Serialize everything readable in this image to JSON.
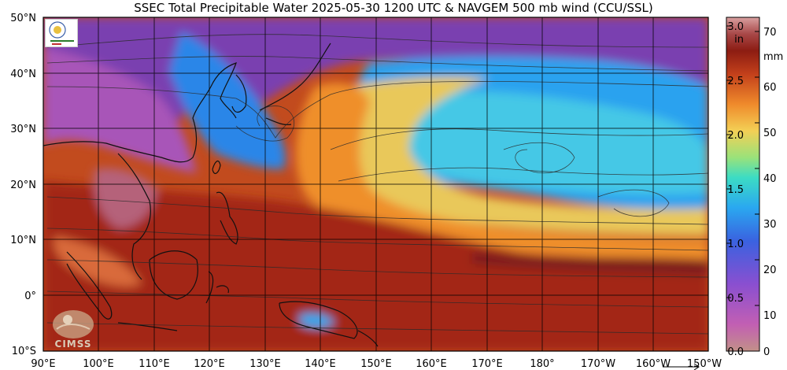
{
  "title": "SSEC Total Precipitable Water  2025-05-30 1200 UTC & NAVGEM 500 mb wind (CCU/SSL)",
  "map": {
    "lat_labels": [
      "50°N",
      "40°N",
      "30°N",
      "20°N",
      "10°N",
      "0°",
      "10°S"
    ],
    "lon_labels": [
      "90°E",
      "100°E",
      "110°E",
      "120°E",
      "130°E",
      "140°E",
      "150°E",
      "160°E",
      "170°E",
      "180°",
      "170°W",
      "160°W",
      "150°W"
    ],
    "extent": {
      "lon_min": 90,
      "lon_max": 210,
      "lat_min": -10,
      "lat_max": 50
    }
  },
  "colorbar": {
    "unit_in": "in",
    "unit_mm": "mm",
    "in_ticks": [
      "3.0",
      "2.5",
      "2.0",
      "1.5",
      "1.0",
      "0.5",
      "0.0"
    ],
    "in_values": [
      3.0,
      2.5,
      2.0,
      1.5,
      1.0,
      0.5,
      0.0
    ],
    "mm_ticks": [
      "70",
      "60",
      "50",
      "40",
      "30",
      "20",
      "10",
      "0"
    ],
    "mm_values": [
      70,
      60,
      50,
      40,
      30,
      20,
      10,
      0
    ],
    "colors": [
      "#c28b82",
      "#b85fb5",
      "#8a4fd0",
      "#3f66e0",
      "#2aa5f0",
      "#38d6c8",
      "#8fe07a",
      "#f5cf54",
      "#f08a2a",
      "#c8401a",
      "#8a1a10",
      "#a84a4a",
      "#d28a8a"
    ]
  },
  "logos": {
    "cimss_text": "CIMSS"
  }
}
